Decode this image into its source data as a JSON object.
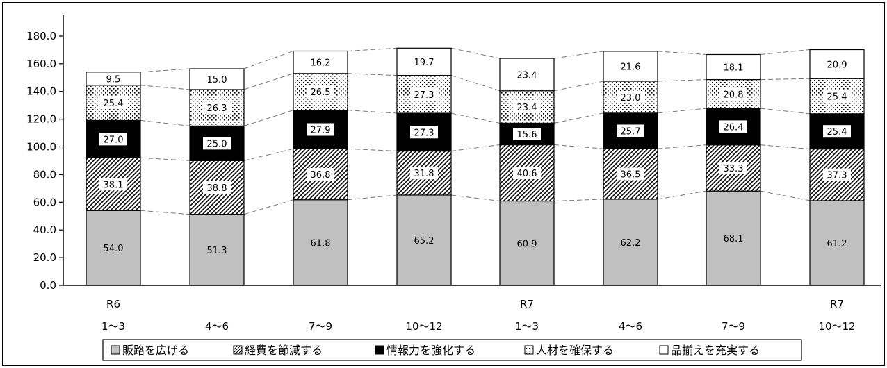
{
  "chart_data": {
    "type": "bar",
    "stacked": true,
    "categories": [
      [
        "R6",
        "1〜3"
      ],
      [
        "",
        "4〜6"
      ],
      [
        "",
        "7〜9"
      ],
      [
        "",
        "10〜12"
      ],
      [
        "R7",
        "1〜3"
      ],
      [
        "",
        "4〜6"
      ],
      [
        "",
        "7〜9"
      ],
      [
        "R7",
        "10〜12"
      ]
    ],
    "series": [
      {
        "name": "販路を広げる",
        "values": [
          54.0,
          51.3,
          61.8,
          65.2,
          60.9,
          62.2,
          68.1,
          61.2
        ],
        "pattern": "solid-gray",
        "color": "#c0c0c0",
        "label_box": false
      },
      {
        "name": "経費を節減する",
        "values": [
          38.1,
          38.8,
          36.8,
          31.8,
          40.6,
          36.5,
          33.3,
          37.3
        ],
        "pattern": "diagonal-hatch",
        "color": "#000000",
        "label_box": true
      },
      {
        "name": "情報力を強化する",
        "values": [
          27.0,
          25.0,
          27.9,
          27.3,
          15.6,
          25.7,
          26.4,
          25.4
        ],
        "pattern": "solid-black",
        "color": "#000000",
        "label_box": true
      },
      {
        "name": "人材を確保する",
        "values": [
          25.4,
          26.3,
          26.5,
          27.3,
          23.4,
          23.0,
          20.8,
          25.4
        ],
        "pattern": "dots",
        "color": "#000000",
        "label_box": true
      },
      {
        "name": "品揃えを充実する",
        "values": [
          9.5,
          15.0,
          16.2,
          19.7,
          23.4,
          21.6,
          18.1,
          20.9
        ],
        "pattern": "white",
        "color": "#ffffff",
        "label_box": false
      }
    ],
    "yticks": [
      "0.0",
      "20.0",
      "40.0",
      "60.0",
      "80.0",
      "100.0",
      "120.0",
      "140.0",
      "160.0",
      "180.0"
    ],
    "ylim": [
      0,
      190
    ],
    "legend_position": "bottom",
    "connector_lines": true
  }
}
